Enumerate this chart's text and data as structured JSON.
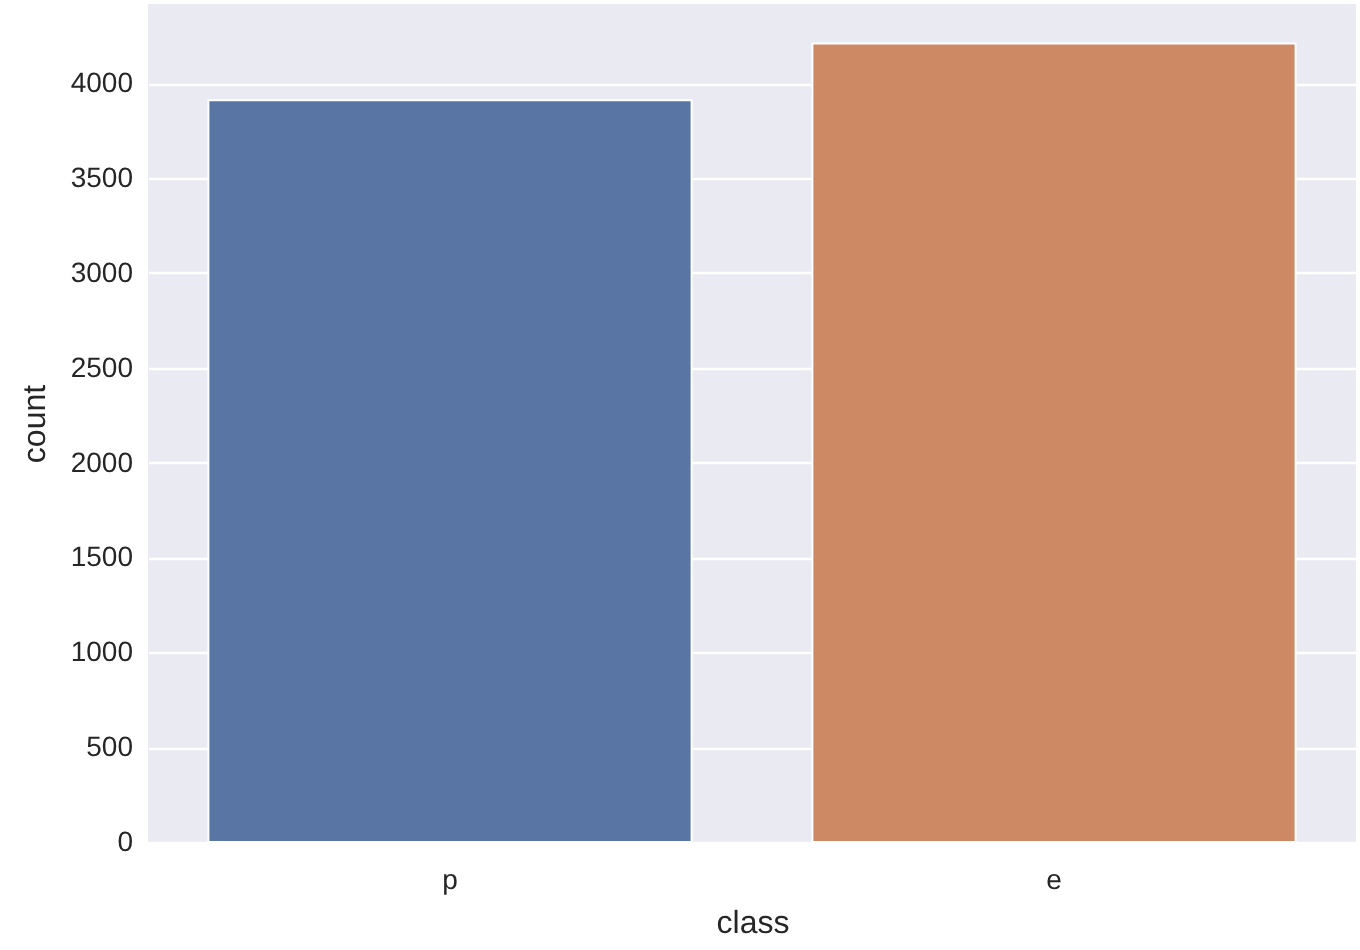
{
  "chart_data": {
    "type": "bar",
    "xlabel": "class",
    "ylabel": "count",
    "categories": [
      "p",
      "e"
    ],
    "values": [
      3910,
      4210
    ],
    "colors": [
      "#5875a4",
      "#cc8963"
    ],
    "ylim": [
      0,
      4418
    ],
    "yticks": [
      0,
      500,
      1000,
      1500,
      2000,
      2500,
      3000,
      3500,
      4000
    ],
    "grid": "y"
  }
}
